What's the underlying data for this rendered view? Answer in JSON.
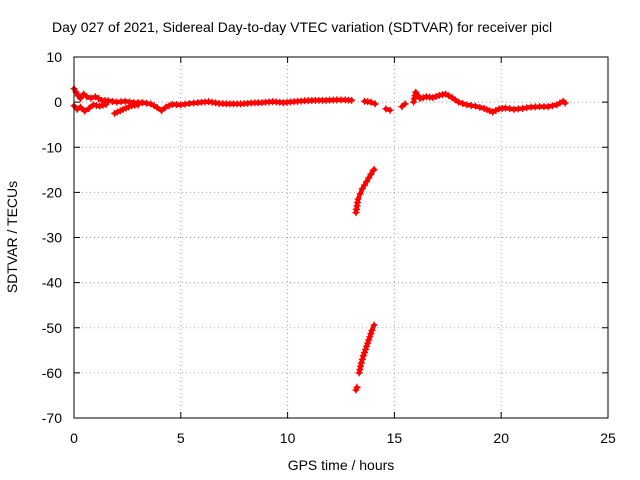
{
  "chart_data": {
    "type": "scatter",
    "title": "Day 027 of 2021, Sidereal Day-to-day VTEC variation (SDTVAR) for receiver picl",
    "xlabel": "GPS time / hours",
    "ylabel": "SDTVAR / TECUs",
    "xlim": [
      0,
      25
    ],
    "ylim": [
      -70,
      10
    ],
    "xticks": [
      0,
      5,
      10,
      15,
      20,
      25
    ],
    "yticks": [
      10,
      0,
      -10,
      -20,
      -30,
      -40,
      -50,
      -60,
      -70
    ],
    "grid": true,
    "marker": "plus",
    "color": "#ff0000",
    "series": [
      {
        "name": "SDTVAR",
        "segments": [
          [
            [
              0.0,
              3.0
            ],
            [
              0.1,
              2.2
            ],
            [
              0.2,
              1.4
            ],
            [
              0.3,
              0.8
            ],
            [
              0.45,
              1.8
            ],
            [
              0.6,
              1.2
            ],
            [
              0.8,
              0.9
            ],
            [
              1.0,
              1.2
            ],
            [
              1.3,
              0.4
            ],
            [
              1.6,
              0.3
            ],
            [
              2.0,
              0.0
            ],
            [
              2.4,
              0.2
            ],
            [
              2.8,
              -0.1
            ],
            [
              3.2,
              -0.1
            ],
            [
              3.6,
              -0.4
            ],
            [
              3.9,
              -1.2
            ],
            [
              4.1,
              -1.9
            ],
            [
              4.3,
              -1.1
            ],
            [
              4.6,
              -0.5
            ],
            [
              5.0,
              -0.6
            ],
            [
              5.4,
              -0.3
            ],
            [
              5.8,
              -0.1
            ],
            [
              6.3,
              0.1
            ],
            [
              6.8,
              -0.3
            ],
            [
              7.3,
              -0.4
            ],
            [
              7.8,
              -0.4
            ],
            [
              8.3,
              -0.2
            ],
            [
              8.8,
              -0.1
            ],
            [
              9.3,
              0.1
            ],
            [
              9.8,
              -0.1
            ],
            [
              10.3,
              0.1
            ],
            [
              10.8,
              0.3
            ],
            [
              11.3,
              0.4
            ],
            [
              11.8,
              0.4
            ],
            [
              12.3,
              0.5
            ],
            [
              12.7,
              0.5
            ],
            [
              13.0,
              0.4
            ]
          ],
          [
            [
              0.0,
              -0.8
            ],
            [
              0.15,
              -1.6
            ],
            [
              0.3,
              -1.1
            ],
            [
              0.5,
              -2.0
            ],
            [
              0.7,
              -1.4
            ],
            [
              0.9,
              -0.6
            ],
            [
              1.2,
              -0.9
            ],
            [
              1.5,
              -0.5
            ]
          ],
          [
            [
              1.9,
              -2.5
            ],
            [
              2.3,
              -1.6
            ],
            [
              2.7,
              -0.8
            ],
            [
              3.0,
              -0.6
            ]
          ],
          [
            [
              13.6,
              0.2
            ],
            [
              13.9,
              0.0
            ],
            [
              14.1,
              -0.4
            ]
          ],
          [
            [
              14.6,
              -1.5
            ],
            [
              14.8,
              -1.8
            ]
          ],
          [
            [
              13.2,
              -24.5
            ],
            [
              13.25,
              -23.0
            ],
            [
              13.3,
              -21.5
            ],
            [
              13.4,
              -20.3
            ],
            [
              13.5,
              -19.2
            ],
            [
              13.6,
              -18.4
            ],
            [
              13.7,
              -17.6
            ],
            [
              13.8,
              -16.8
            ],
            [
              13.9,
              -16.0
            ],
            [
              14.0,
              -15.2
            ],
            [
              14.05,
              -14.9
            ]
          ],
          [
            [
              13.2,
              -63.8
            ],
            [
              13.25,
              -63.2
            ]
          ],
          [
            [
              13.35,
              -60.0
            ],
            [
              13.45,
              -57.8
            ],
            [
              13.55,
              -56.2
            ],
            [
              13.65,
              -54.8
            ],
            [
              13.75,
              -53.4
            ],
            [
              13.85,
              -52.0
            ],
            [
              13.95,
              -50.6
            ],
            [
              14.05,
              -49.4
            ]
          ],
          [
            [
              15.35,
              -1.0
            ],
            [
              15.5,
              -0.4
            ]
          ],
          [
            [
              15.9,
              0.0
            ],
            [
              16.0,
              2.2
            ],
            [
              16.2,
              0.8
            ],
            [
              16.5,
              1.2
            ],
            [
              16.8,
              1.0
            ],
            [
              17.1,
              1.5
            ],
            [
              17.4,
              1.8
            ],
            [
              17.7,
              1.0
            ],
            [
              18.0,
              0.0
            ],
            [
              18.4,
              -0.6
            ],
            [
              18.8,
              -0.9
            ],
            [
              19.2,
              -1.4
            ],
            [
              19.6,
              -2.2
            ],
            [
              19.9,
              -1.5
            ],
            [
              20.2,
              -1.3
            ],
            [
              20.6,
              -1.6
            ],
            [
              21.0,
              -1.4
            ],
            [
              21.4,
              -1.1
            ],
            [
              21.8,
              -1.0
            ],
            [
              22.2,
              -1.0
            ],
            [
              22.6,
              -0.6
            ],
            [
              22.9,
              0.2
            ],
            [
              23.0,
              -0.2
            ]
          ]
        ]
      }
    ]
  }
}
